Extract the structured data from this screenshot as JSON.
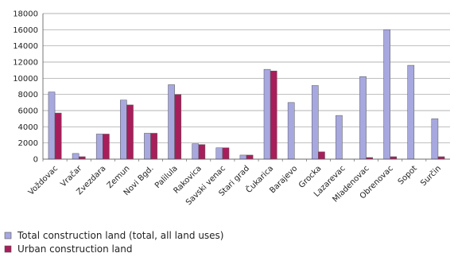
{
  "chart_data": {
    "type": "bar",
    "categories": [
      "Voždovac",
      "Vračar",
      "Zvezdara",
      "Zemun",
      "Novi Bgd.",
      "Palilula",
      "Rakovica",
      "Savski venac",
      "Stari grad",
      "Čukarica",
      "Barajevo",
      "Grocka",
      "Lazarevac",
      "Mladenovac",
      "Obrenovac",
      "Sopot",
      "Surčin"
    ],
    "category_colors": [
      "#222222",
      "#b04040",
      "#222222",
      "#222222",
      "#222222",
      "#222222",
      "#222222",
      "#222222",
      "#222222",
      "#b04040",
      "#222222",
      "#222222",
      "#222222",
      "#222222",
      "#222222",
      "#222222",
      "#b04040"
    ],
    "series": [
      {
        "name": "Total construction land (total, all land uses)",
        "color": "#a8a8e0",
        "values": [
          8300,
          700,
          3100,
          7300,
          3200,
          9200,
          1900,
          1400,
          500,
          11100,
          7000,
          9100,
          5400,
          10200,
          16000,
          11600,
          5000
        ]
      },
      {
        "name": "Urban construction land",
        "color": "#a81e5a",
        "values": [
          5700,
          300,
          3100,
          6700,
          3200,
          8000,
          1800,
          1400,
          500,
          10900,
          0,
          900,
          0,
          200,
          300,
          0,
          300
        ]
      }
    ],
    "ylim": [
      0,
      18000
    ],
    "yticks": [
      0,
      2000,
      4000,
      6000,
      8000,
      10000,
      12000,
      14000,
      16000,
      18000
    ],
    "grid": true,
    "legend_position": "bottom-left"
  }
}
